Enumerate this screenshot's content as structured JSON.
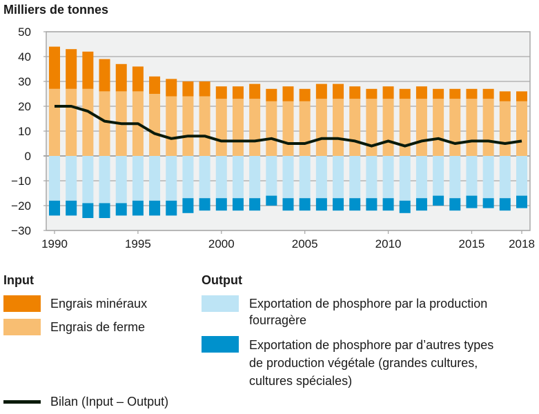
{
  "chart_data": {
    "type": "bar",
    "stacked": true,
    "title": "Milliers de tonnes",
    "ylim": [
      -30,
      50
    ],
    "yticks": [
      50,
      40,
      30,
      20,
      10,
      0,
      -10,
      -20,
      -30
    ],
    "xtick_labels": [
      "1990",
      "1995",
      "2000",
      "2005",
      "2010",
      "2015",
      "2018"
    ],
    "grid": true,
    "legend_placement": "bottom",
    "categories": [
      1990,
      1991,
      1992,
      1993,
      1994,
      1995,
      1996,
      1997,
      1998,
      1999,
      2000,
      2001,
      2002,
      2003,
      2004,
      2005,
      2006,
      2007,
      2008,
      2009,
      2010,
      2011,
      2012,
      2013,
      2014,
      2015,
      2016,
      2017,
      2018
    ],
    "series": [
      {
        "name": "Engrais de ferme",
        "group": "Input",
        "color": "#f8be72",
        "values": [
          27,
          27,
          27,
          26,
          26,
          26,
          25,
          24,
          24,
          24,
          23,
          23,
          23,
          22,
          22,
          22,
          23,
          23,
          23,
          23,
          23,
          23,
          23,
          23,
          23,
          23,
          23,
          22,
          22
        ]
      },
      {
        "name": "Engrais minéraux",
        "group": "Input",
        "color": "#ef8200",
        "values": [
          17,
          16,
          15,
          13,
          11,
          10,
          7,
          7,
          6,
          6,
          5,
          5,
          6,
          5,
          6,
          5,
          6,
          6,
          5,
          4,
          5,
          4,
          5,
          4,
          4,
          4,
          4,
          4,
          4
        ]
      },
      {
        "name": "Exportation de phosphore par la production fourragère",
        "group": "Output",
        "color": "#bde4f5",
        "values": [
          -18,
          -18,
          -19,
          -19,
          -19,
          -18,
          -18,
          -18,
          -17,
          -17,
          -17,
          -17,
          -17,
          -16,
          -17,
          -17,
          -17,
          -17,
          -17,
          -17,
          -17,
          -18,
          -17,
          -16,
          -17,
          -16,
          -17,
          -17,
          -16
        ]
      },
      {
        "name": "Exportation de phosphore par d’autres types de production végétale (grandes cultures, cultures spéciales)",
        "group": "Output",
        "color": "#0091cc",
        "values": [
          -6,
          -6,
          -6,
          -6,
          -5,
          -6,
          -6,
          -6,
          -6,
          -5,
          -5,
          -5,
          -5,
          -4,
          -5,
          -5,
          -5,
          -5,
          -5,
          -5,
          -5,
          -5,
          -5,
          -4,
          -5,
          -5,
          -4,
          -5,
          -5
        ]
      },
      {
        "name": "Bilan (Input – Output)",
        "type": "line",
        "color": "#0a1a0a",
        "values": [
          20,
          20,
          18,
          14,
          13,
          13,
          9,
          7,
          8,
          8,
          6,
          6,
          6,
          7,
          5,
          5,
          7,
          7,
          6,
          4,
          6,
          4,
          6,
          7,
          5,
          6,
          6,
          5,
          6
        ]
      }
    ]
  },
  "legend": {
    "input_title": "Input",
    "output_title": "Output",
    "mineral": "Engrais minéraux",
    "farm": "Engrais de ferme",
    "fodder_l1": "Exportation de phosphore par la production",
    "fodder_l2": "fourragère",
    "other_l1": "Exportation de phosphore par d’autres types",
    "other_l2": "de production végétale (grandes cultures,",
    "other_l3": "cultures spéciales)",
    "bilan": "Bilan (Input – Output)"
  }
}
